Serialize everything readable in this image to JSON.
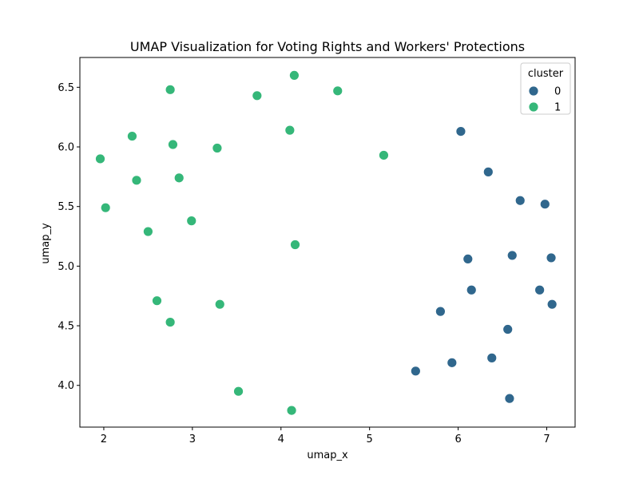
{
  "chart_data": {
    "type": "scatter",
    "title": "UMAP Visualization for Voting Rights and Workers' Protections",
    "xlabel": "umap_x",
    "ylabel": "umap_y",
    "xlim": [
      1.73,
      7.32
    ],
    "ylim": [
      3.65,
      6.75
    ],
    "xticks": [
      2,
      3,
      4,
      5,
      6,
      7
    ],
    "xtick_labels": [
      "2",
      "3",
      "4",
      "5",
      "6",
      "7"
    ],
    "yticks": [
      4.0,
      4.5,
      5.0,
      5.5,
      6.0,
      6.5
    ],
    "ytick_labels": [
      "4.0",
      "4.5",
      "5.0",
      "5.5",
      "6.0",
      "6.5"
    ],
    "grid": false,
    "legend": {
      "title": "cluster",
      "placement": "top-right"
    },
    "series": [
      {
        "name": "0",
        "color": "#30678d",
        "points": [
          [
            6.03,
            6.13
          ],
          [
            6.34,
            5.79
          ],
          [
            6.7,
            5.55
          ],
          [
            6.98,
            5.52
          ],
          [
            6.11,
            5.06
          ],
          [
            6.61,
            5.09
          ],
          [
            7.05,
            5.07
          ],
          [
            6.15,
            4.8
          ],
          [
            6.92,
            4.8
          ],
          [
            5.8,
            4.62
          ],
          [
            7.06,
            4.68
          ],
          [
            6.56,
            4.47
          ],
          [
            6.38,
            4.23
          ],
          [
            5.93,
            4.19
          ],
          [
            5.52,
            4.12
          ],
          [
            6.58,
            3.89
          ]
        ]
      },
      {
        "name": "1",
        "color": "#35b779",
        "points": [
          [
            4.15,
            6.6
          ],
          [
            2.75,
            6.48
          ],
          [
            3.73,
            6.43
          ],
          [
            4.64,
            6.47
          ],
          [
            4.1,
            6.14
          ],
          [
            2.32,
            6.09
          ],
          [
            2.78,
            6.02
          ],
          [
            3.28,
            5.99
          ],
          [
            5.16,
            5.93
          ],
          [
            1.96,
            5.9
          ],
          [
            2.37,
            5.72
          ],
          [
            2.85,
            5.74
          ],
          [
            2.02,
            5.49
          ],
          [
            2.99,
            5.38
          ],
          [
            2.5,
            5.29
          ],
          [
            4.16,
            5.18
          ],
          [
            2.6,
            4.71
          ],
          [
            3.31,
            4.68
          ],
          [
            2.75,
            4.53
          ],
          [
            3.52,
            3.95
          ],
          [
            4.12,
            3.79
          ]
        ]
      }
    ]
  }
}
